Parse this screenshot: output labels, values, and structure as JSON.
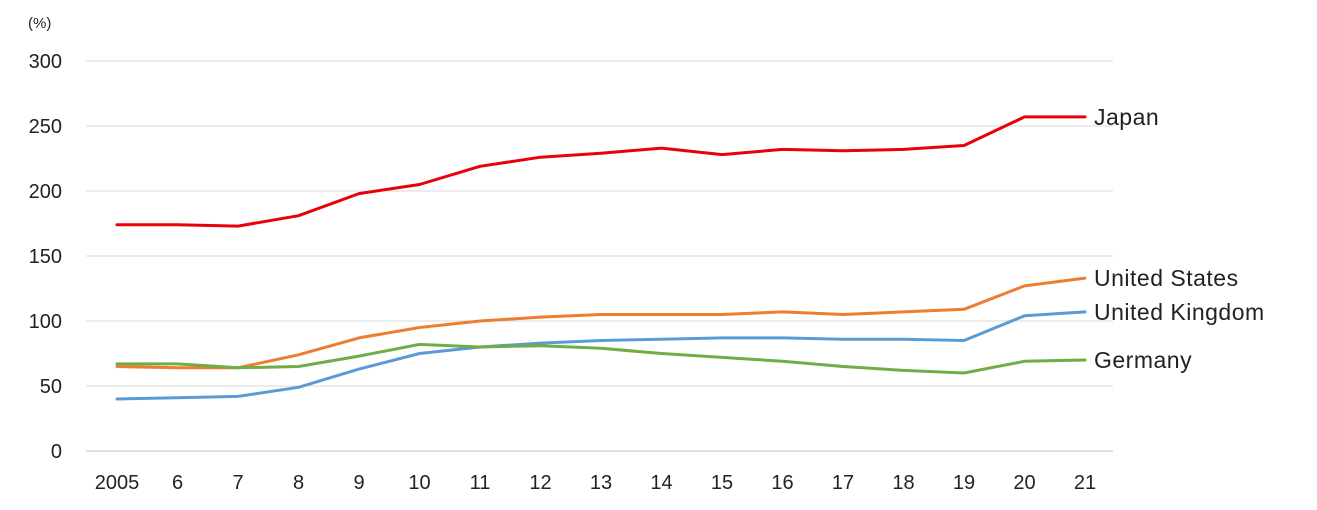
{
  "chart_data": {
    "type": "line",
    "title": "",
    "xlabel": "",
    "ylabel": "",
    "y_unit": "(%)",
    "ylim": [
      0,
      300
    ],
    "yticks": [
      0,
      50,
      100,
      150,
      200,
      250,
      300
    ],
    "grid": true,
    "legend": "end-of-line labels",
    "categories": [
      "2005",
      "6",
      "7",
      "8",
      "9",
      "10",
      "11",
      "12",
      "13",
      "14",
      "15",
      "16",
      "17",
      "18",
      "19",
      "20",
      "21"
    ],
    "series": [
      {
        "name": "Japan",
        "color": "#e8000b",
        "values": [
          174,
          174,
          173,
          181,
          198,
          205,
          219,
          226,
          229,
          233,
          228,
          232,
          231,
          232,
          235,
          257,
          257
        ]
      },
      {
        "name": "United States",
        "color": "#ed7d31",
        "values": [
          65,
          64,
          64,
          74,
          87,
          95,
          100,
          103,
          105,
          105,
          105,
          107,
          105,
          107,
          109,
          127,
          133
        ]
      },
      {
        "name": "United Kingdom",
        "color": "#5b9bd5",
        "values": [
          40,
          41,
          42,
          49,
          63,
          75,
          80,
          83,
          85,
          86,
          87,
          87,
          86,
          86,
          85,
          104,
          107
        ]
      },
      {
        "name": "Germany",
        "color": "#70ad47",
        "values": [
          67,
          67,
          64,
          65,
          73,
          82,
          80,
          81,
          79,
          75,
          72,
          69,
          65,
          62,
          60,
          69,
          70
        ]
      }
    ]
  }
}
